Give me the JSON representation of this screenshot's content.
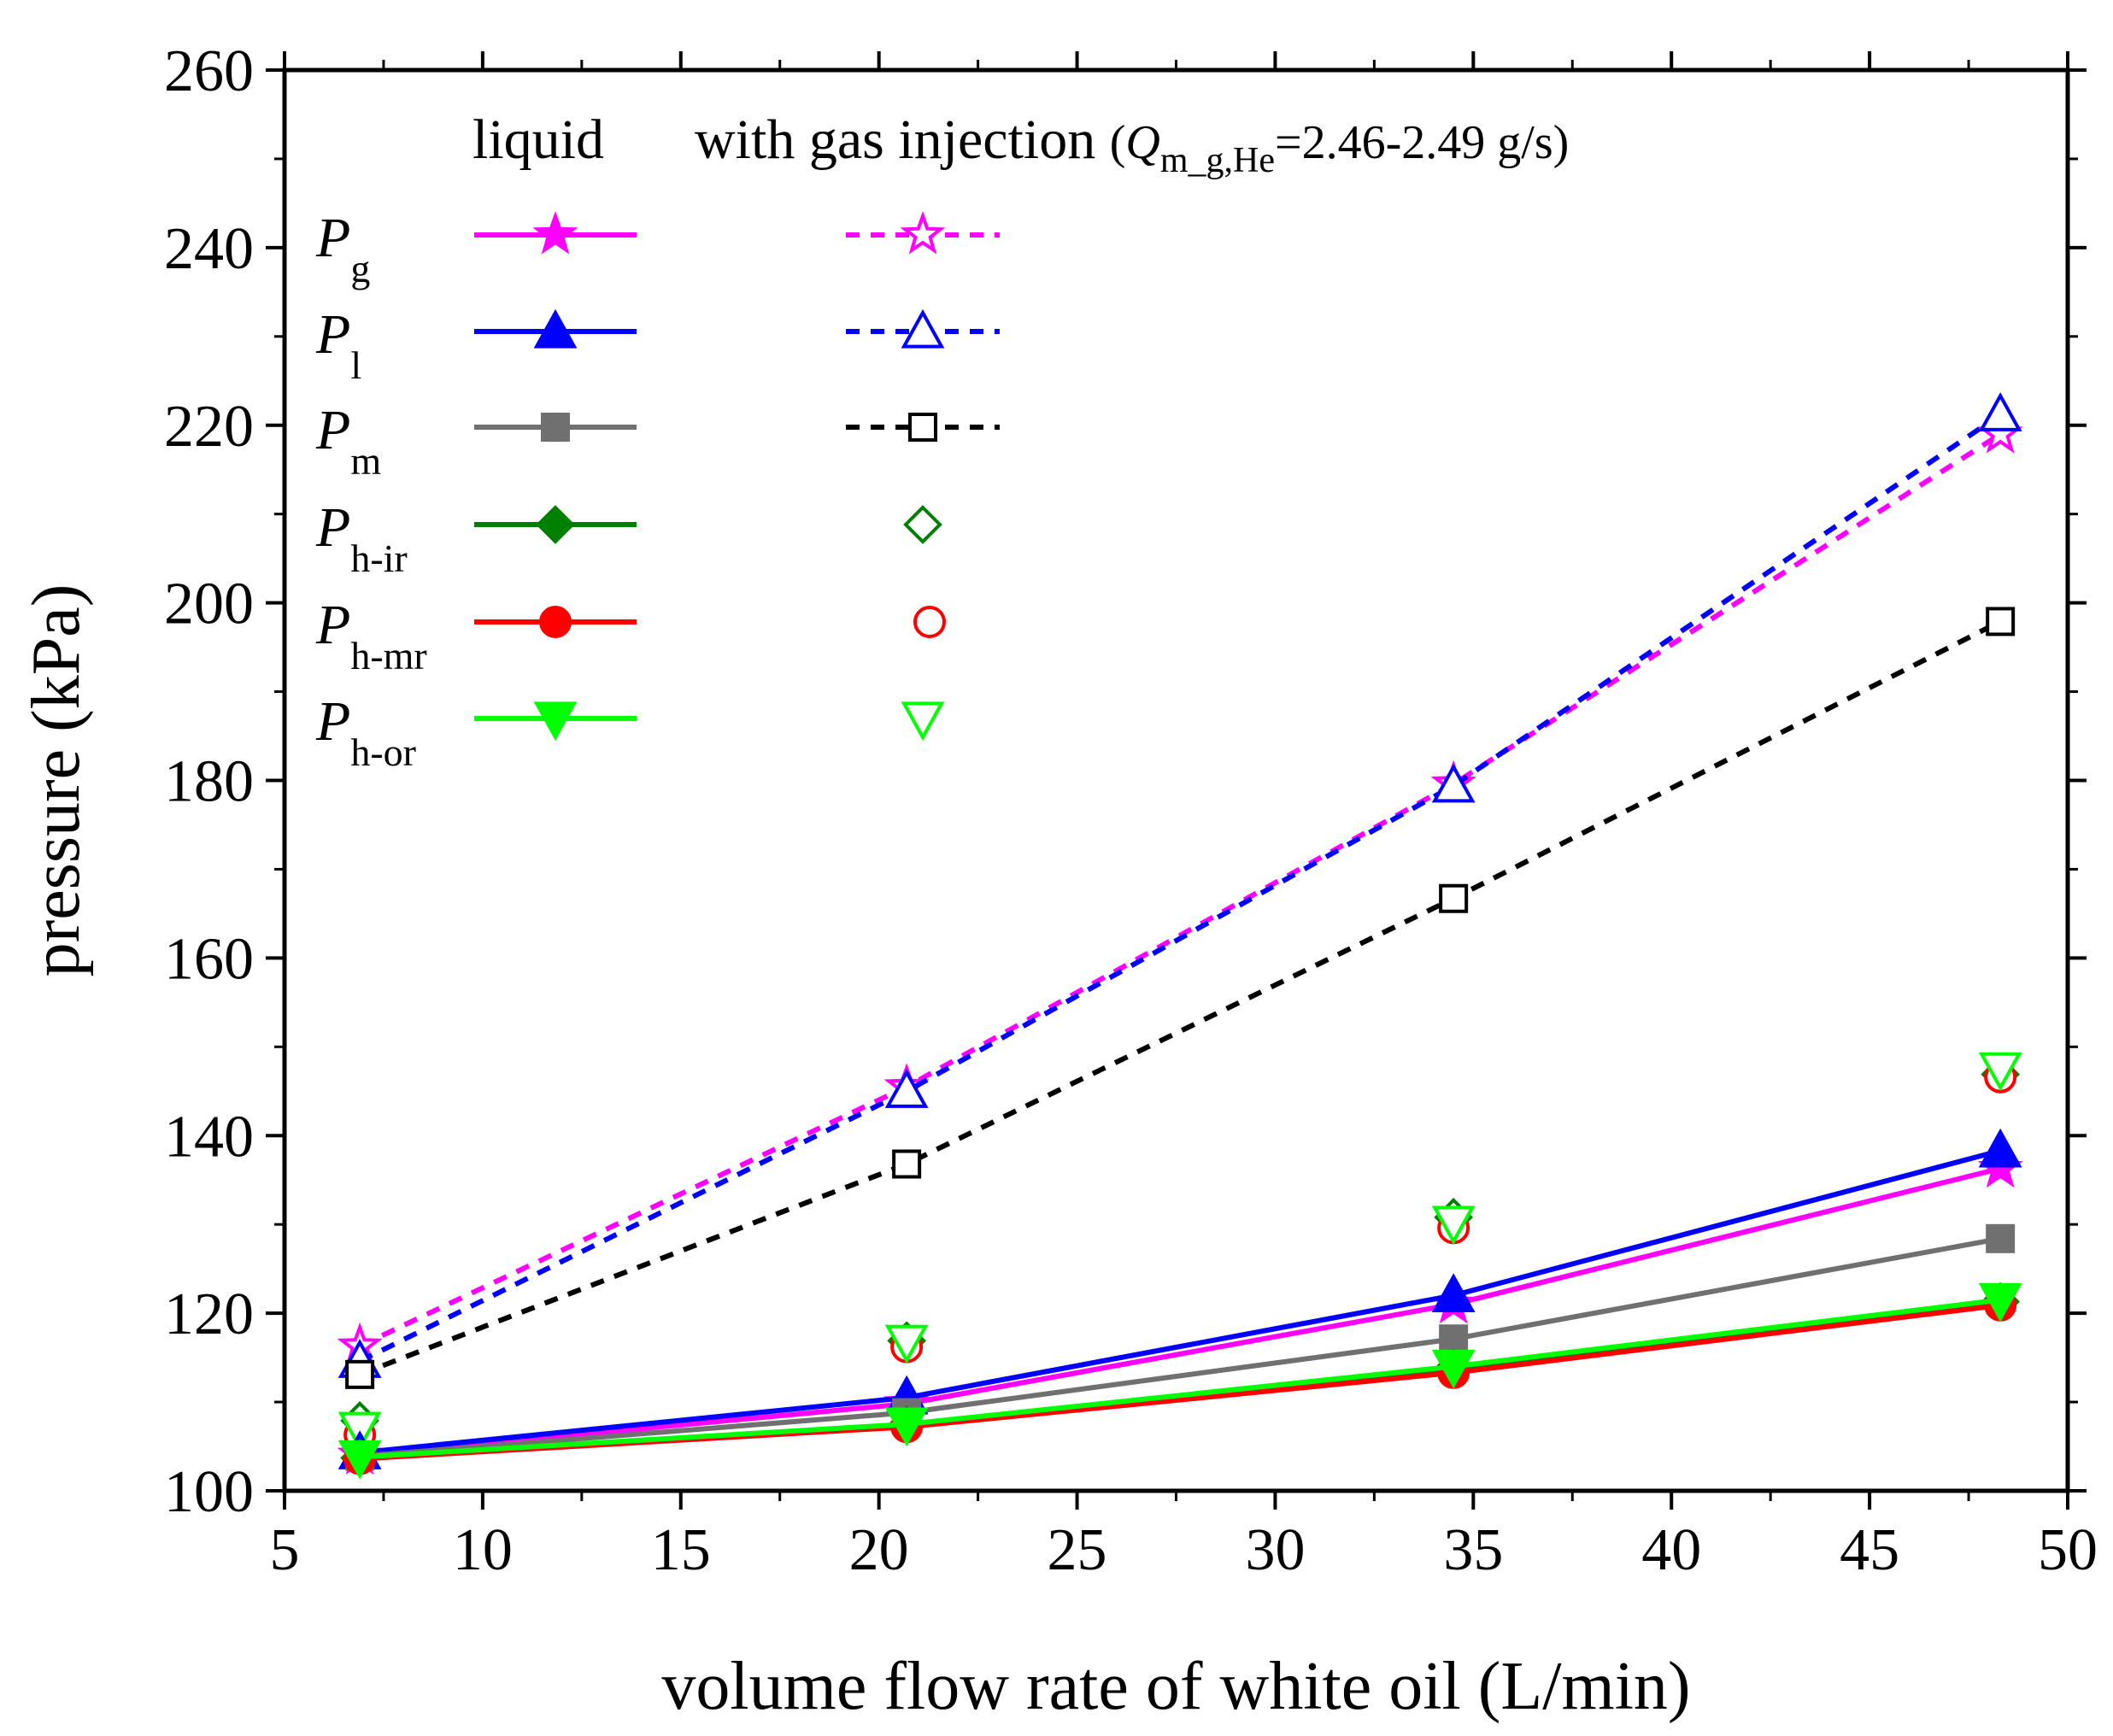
{
  "chart_data": {
    "type": "line",
    "title": "",
    "xlabel": "volume flow rate of white oil (L/min)",
    "ylabel": "pressure (kPa)",
    "xlim": [
      5,
      50
    ],
    "ylim": [
      100,
      260
    ],
    "x_ticks": [
      5,
      10,
      15,
      20,
      25,
      30,
      35,
      40,
      45,
      50
    ],
    "y_ticks": [
      100,
      120,
      140,
      160,
      180,
      200,
      220,
      240,
      260
    ],
    "x_tick_labels": [
      "5",
      "10",
      "15",
      "20",
      "25",
      "30",
      "35",
      "40",
      "45",
      "50"
    ],
    "y_tick_labels": [
      "100",
      "120",
      "140",
      "160",
      "180",
      "200",
      "220",
      "240",
      "260"
    ],
    "grid": false,
    "legend": {
      "placement": "top-left",
      "col_liquid": "liquid",
      "col_gas": "with gas injection",
      "gas_note": {
        "open": "(",
        "q": "Q",
        "sub": "m_g,He",
        "rest": "=2.46-2.49 g/s)"
      }
    },
    "series": [
      {
        "key": "Pg_liq",
        "name": "P",
        "sub": "g",
        "group": "liquid",
        "marker": "star",
        "filled": true,
        "color": "#ff00ff",
        "line": "solid",
        "x": [
          6.9,
          20.7,
          34.5,
          48.3
        ],
        "y": [
          104.0,
          109.8,
          121.0,
          136.3
        ]
      },
      {
        "key": "Pl_liq",
        "name": "P",
        "sub": "l",
        "group": "liquid",
        "marker": "triangle-up",
        "filled": true,
        "color": "#0000ff",
        "line": "solid",
        "x": [
          6.9,
          20.7,
          34.5,
          48.3
        ],
        "y": [
          104.3,
          110.5,
          122.0,
          138.3
        ]
      },
      {
        "key": "Pm_liq",
        "name": "P",
        "sub": "m",
        "group": "liquid",
        "marker": "square",
        "filled": true,
        "color": "#707070",
        "line": "solid",
        "x": [
          6.9,
          20.7,
          34.5,
          48.3
        ],
        "y": [
          103.9,
          108.8,
          117.1,
          128.4
        ]
      },
      {
        "key": "Phir_liq",
        "name": "P",
        "sub": "h-ir",
        "group": "liquid",
        "marker": "diamond",
        "filled": true,
        "color": "#008000",
        "line": "solid",
        "x": [
          6.9,
          20.7,
          34.5,
          48.3
        ],
        "y": [
          103.7,
          107.4,
          113.8,
          121.3
        ]
      },
      {
        "key": "Phmr_liq",
        "name": "P",
        "sub": "h-mr",
        "group": "liquid",
        "marker": "circle",
        "filled": true,
        "color": "#ff0000",
        "line": "solid",
        "x": [
          6.9,
          20.7,
          34.5,
          48.3
        ],
        "y": [
          103.6,
          107.2,
          113.3,
          120.9
        ]
      },
      {
        "key": "Phor_liq",
        "name": "P",
        "sub": "h-or",
        "group": "liquid",
        "marker": "triangle-down",
        "filled": true,
        "color": "#00ff00",
        "line": "solid",
        "x": [
          6.9,
          20.7,
          34.5,
          48.3
        ],
        "y": [
          103.8,
          107.5,
          114.0,
          121.5
        ]
      },
      {
        "key": "Pg_gas",
        "name": "P",
        "sub": "g",
        "group": "with gas injection",
        "marker": "star",
        "filled": false,
        "color": "#ff00ff",
        "line": "dashed",
        "x": [
          6.9,
          20.7,
          34.5,
          48.3
        ],
        "y": [
          116.3,
          145.5,
          179.6,
          219.0
        ]
      },
      {
        "key": "Pl_gas",
        "name": "P",
        "sub": "l",
        "group": "with gas injection",
        "marker": "triangle-up",
        "filled": false,
        "color": "#0000ff",
        "line": "dashed",
        "x": [
          6.9,
          20.7,
          34.5,
          48.3
        ],
        "y": [
          114.6,
          145.0,
          179.4,
          221.2
        ]
      },
      {
        "key": "Pm_gas",
        "name": "P",
        "sub": "m",
        "group": "with gas injection",
        "marker": "square",
        "filled": false,
        "color": "#000000",
        "line": "dashed",
        "x": [
          6.9,
          20.7,
          34.5,
          48.3
        ],
        "y": [
          113.1,
          136.8,
          166.7,
          197.9
        ]
      },
      {
        "key": "Phir_gas",
        "name": "P",
        "sub": "h-ir",
        "group": "with gas injection",
        "marker": "diamond",
        "filled": false,
        "color": "#008000",
        "line": "none",
        "x": [
          6.9,
          20.7,
          34.5,
          48.3
        ],
        "y": [
          107.9,
          116.9,
          130.8,
          146.9
        ]
      },
      {
        "key": "Phmr_gas",
        "name": "P",
        "sub": "h-mr",
        "group": "with gas injection",
        "marker": "circle",
        "filled": false,
        "color": "#ff0000",
        "line": "none",
        "x": [
          6.9,
          20.7,
          34.5,
          48.3
        ],
        "y": [
          106.3,
          116.2,
          129.6,
          146.6
        ]
      },
      {
        "key": "Phor_gas",
        "name": "P",
        "sub": "h-or",
        "group": "with gas injection",
        "marker": "triangle-down",
        "filled": false,
        "color": "#00ff00",
        "line": "none",
        "x": [
          6.9,
          20.7,
          34.5,
          48.3
        ],
        "y": [
          107.0,
          116.8,
          130.2,
          147.5
        ]
      }
    ]
  }
}
